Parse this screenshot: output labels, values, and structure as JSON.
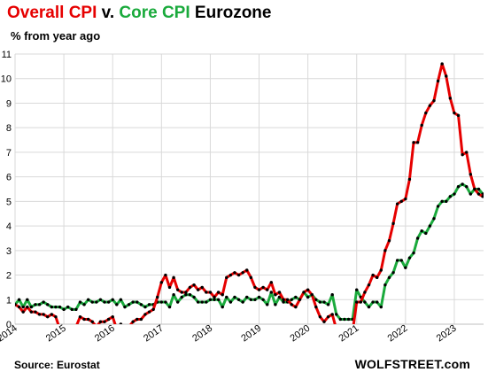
{
  "chart_data": {
    "type": "line",
    "title": {
      "part1": "Overall CPI",
      "part2": " v. ",
      "part3": "Core CPI",
      "part4": " Eurozone"
    },
    "ylabel": "% from year ago",
    "ylim": [
      0,
      11
    ],
    "yticks": [
      "0",
      "1",
      "2",
      "3",
      "4",
      "5",
      "6",
      "7",
      "8",
      "9",
      "10",
      "11"
    ],
    "xlim": [
      2014.0,
      2023.6
    ],
    "xticks": [
      "2014",
      "2015",
      "2016",
      "2017",
      "2018",
      "2019",
      "2020",
      "2021",
      "2022",
      "2023"
    ],
    "grid": true,
    "colors": {
      "overall": "#e60000",
      "core": "#1aaa3c",
      "markers": "#000000"
    },
    "series": [
      {
        "name": "Overall CPI",
        "color": "#e60000",
        "start": "2014-01",
        "values": [
          0.8,
          0.7,
          0.5,
          0.7,
          0.5,
          0.5,
          0.4,
          0.4,
          0.3,
          0.4,
          0.3,
          -0.2,
          -0.6,
          -0.3,
          -0.1,
          -0.1,
          0.3,
          0.2,
          0.2,
          0.1,
          -0.1,
          0.1,
          0.1,
          0.2,
          0.3,
          -0.2,
          0.0,
          -0.2,
          -0.1,
          0.1,
          0.2,
          0.2,
          0.4,
          0.5,
          0.6,
          1.1,
          1.7,
          2.0,
          1.5,
          1.9,
          1.4,
          1.3,
          1.3,
          1.5,
          1.6,
          1.4,
          1.5,
          1.3,
          1.3,
          1.1,
          1.3,
          1.2,
          1.9,
          2.0,
          2.1,
          2.0,
          2.1,
          2.2,
          1.9,
          1.5,
          1.4,
          1.5,
          1.4,
          1.7,
          1.2,
          1.3,
          1.0,
          1.0,
          0.8,
          0.7,
          1.0,
          1.3,
          1.4,
          1.2,
          0.7,
          0.3,
          0.1,
          0.3,
          0.4,
          -0.2,
          -0.3,
          -0.3,
          -0.3,
          -0.3,
          0.9,
          0.9,
          1.3,
          1.6,
          2.0,
          1.9,
          2.2,
          3.0,
          3.4,
          4.1,
          4.9,
          5.0,
          5.1,
          5.9,
          7.4,
          7.4,
          8.1,
          8.6,
          8.9,
          9.1,
          9.9,
          10.6,
          10.1,
          9.2,
          8.6,
          8.5,
          6.9,
          7.0,
          6.1,
          5.5,
          5.3,
          5.2
        ]
      },
      {
        "name": "Core CPI",
        "color": "#1aaa3c",
        "start": "2014-01",
        "values": [
          0.8,
          1.0,
          0.7,
          1.0,
          0.7,
          0.8,
          0.8,
          0.9,
          0.8,
          0.7,
          0.7,
          0.7,
          0.6,
          0.7,
          0.6,
          0.6,
          0.9,
          0.8,
          1.0,
          0.9,
          0.9,
          1.0,
          0.9,
          0.9,
          1.0,
          0.8,
          1.0,
          0.7,
          0.8,
          0.9,
          0.9,
          0.8,
          0.7,
          0.8,
          0.8,
          0.9,
          0.9,
          0.9,
          0.7,
          1.2,
          0.9,
          1.1,
          1.2,
          1.2,
          1.1,
          0.9,
          0.9,
          0.9,
          1.0,
          1.0,
          1.0,
          0.7,
          1.1,
          0.9,
          1.1,
          1.0,
          0.9,
          1.1,
          1.0,
          1.0,
          1.1,
          1.0,
          0.8,
          1.3,
          0.8,
          1.1,
          0.9,
          0.9,
          1.0,
          1.1,
          1.0,
          1.3,
          1.1,
          1.2,
          1.0,
          0.9,
          0.9,
          0.8,
          1.2,
          0.4,
          0.2,
          0.2,
          0.2,
          0.2,
          1.4,
          1.1,
          0.9,
          0.7,
          0.9,
          0.9,
          0.7,
          1.6,
          1.9,
          2.1,
          2.6,
          2.6,
          2.3,
          2.7,
          2.9,
          3.5,
          3.8,
          3.7,
          4.0,
          4.3,
          4.8,
          5.0,
          5.0,
          5.2,
          5.3,
          5.6,
          5.7,
          5.6,
          5.3,
          5.5,
          5.5,
          5.3
        ]
      }
    ]
  },
  "footer": {
    "source": "Source: Eurostat",
    "brand": "WOLFSTREET.com"
  }
}
